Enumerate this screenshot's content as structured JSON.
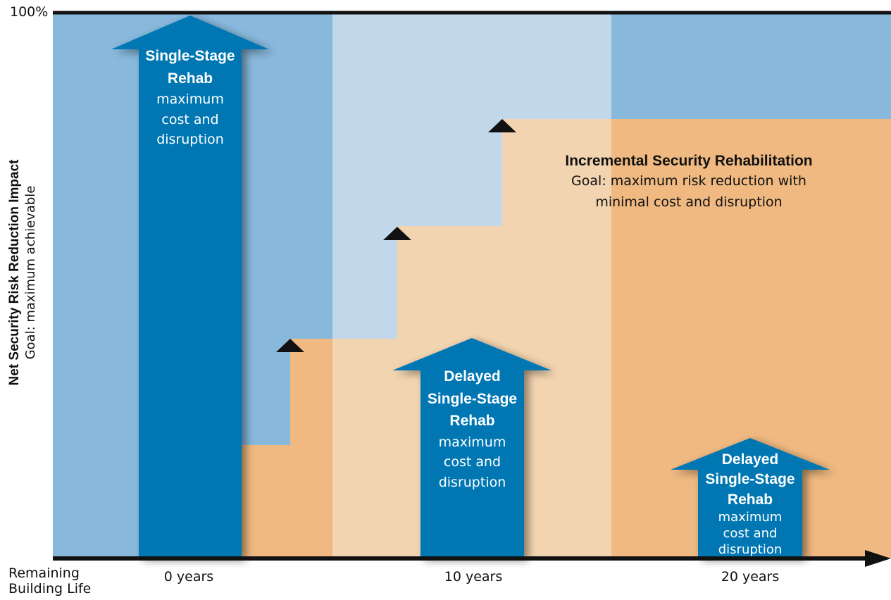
{
  "axis": {
    "y_max_label": "100%",
    "y_title": "Net Security Risk Reduction Impact",
    "y_subtitle": "Goal: maximum achievable",
    "x_title_line1": "Remaining",
    "x_title_line2": "Building Life",
    "x_ticks": [
      "0 years",
      "10 years",
      "20 years"
    ]
  },
  "incremental": {
    "title": "Incremental Security Rehabilitation",
    "goal_line1": "Goal: maximum risk reduction with",
    "goal_line2": "minimal cost and disruption"
  },
  "arrows": [
    {
      "title_lines": [
        "Single-Stage",
        "Rehab"
      ],
      "body_lines": [
        "maximum",
        "cost and",
        "disruption"
      ]
    },
    {
      "title_lines": [
        "Delayed",
        "Single-Stage",
        "Rehab"
      ],
      "body_lines": [
        "maximum",
        "cost and",
        "disruption"
      ]
    },
    {
      "title_lines": [
        "Delayed",
        "Single-Stage",
        "Rehab"
      ],
      "body_lines": [
        "maximum",
        "cost and",
        "disruption"
      ]
    }
  ],
  "colors": {
    "blue_panel": "#88b8dc",
    "light_blue_panel": "#c2d8ea",
    "orange": "#efb981",
    "light_orange": "#f3d4b0",
    "arrow_blue": "#0077b3",
    "axis": "#111111"
  }
}
